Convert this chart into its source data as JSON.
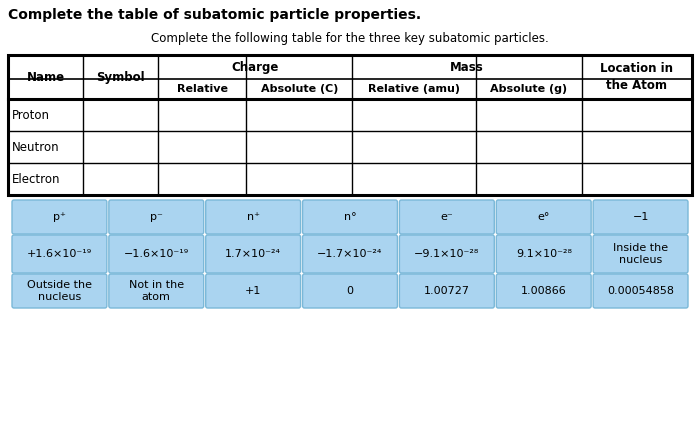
{
  "title": "Complete the table of subatomic particle properties.",
  "subtitle": "Complete the following table for the three key subatomic particles.",
  "answer_tiles_row1": [
    "p⁺",
    "p⁻",
    "n⁺",
    "n°",
    "e⁻",
    "e°",
    "−1"
  ],
  "answer_tiles_row2": [
    "+1.6×10⁻¹⁹",
    "−1.6×10⁻¹⁹",
    "1.7×10⁻²⁴",
    "−1.7×10⁻²⁴",
    "−9.1×10⁻²⁸",
    "9.1×10⁻²⁸",
    "Inside the\nnucleus"
  ],
  "answer_tiles_row3": [
    "Outside the\nnucleus",
    "Not in the\natom",
    "+1",
    "0",
    "1.00727",
    "1.00866",
    "0.00054858"
  ],
  "tile_color": "#aad4f0",
  "tile_edge_color": "#7ab8d8",
  "bg_color": "#ffffff",
  "title_fontsize": 10,
  "subtitle_fontsize": 8.5,
  "table_fontsize": 8.5,
  "tile_fontsize": 8
}
